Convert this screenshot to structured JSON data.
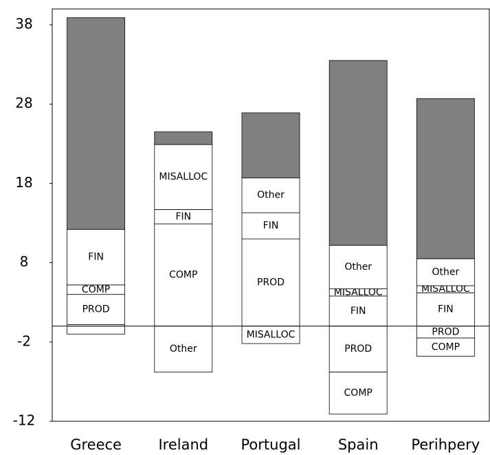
{
  "chart_data": {
    "type": "stacked-bar",
    "categories": [
      "Greece",
      "Ireland",
      "Portugal",
      "Spain",
      "Perihpery"
    ],
    "segment_colors": {
      "labeled": "#ffffff",
      "residual": "#808080"
    },
    "bars": [
      [
        {
          "label": null,
          "value": -1.0
        },
        {
          "label": null,
          "value": 0.2
        },
        {
          "label": "PROD",
          "value": 3.8
        },
        {
          "label": "COMP",
          "value": 1.2
        },
        {
          "label": "FIN",
          "value": 7.0
        },
        {
          "label": null,
          "value": 26.7,
          "residual": true
        }
      ],
      [
        {
          "label": "Other",
          "value": -5.8
        },
        {
          "label": "COMP",
          "value": 12.9
        },
        {
          "label": "FIN",
          "value": 1.8
        },
        {
          "label": "MISALLOC",
          "value": 8.2
        },
        {
          "label": null,
          "value": 1.6,
          "residual": true
        }
      ],
      [
        {
          "label": "MISALLOC",
          "value": -2.2
        },
        {
          "label": "PROD",
          "value": 11.0
        },
        {
          "label": "FIN",
          "value": 3.3
        },
        {
          "label": "Other",
          "value": 4.4
        },
        {
          "label": null,
          "value": 8.2,
          "residual": true
        }
      ],
      [
        {
          "label": "PROD",
          "value": -5.8
        },
        {
          "label": "COMP",
          "value": -5.3
        },
        {
          "label": "FIN",
          "value": 3.8
        },
        {
          "label": "MISALLOC",
          "value": 0.9
        },
        {
          "label": "Other",
          "value": 5.5
        },
        {
          "label": null,
          "value": 23.3,
          "residual": true
        }
      ],
      [
        {
          "label": "PROD",
          "value": -1.5
        },
        {
          "label": "COMP",
          "value": -2.3
        },
        {
          "label": "FIN",
          "value": 4.2
        },
        {
          "label": "MISALLOC",
          "value": 0.9
        },
        {
          "label": "Other",
          "value": 3.4
        },
        {
          "label": null,
          "value": 20.2,
          "residual": true
        }
      ]
    ],
    "ylim": [
      -12,
      40
    ],
    "yticks": [
      -12,
      -2,
      8,
      18,
      28,
      38
    ]
  }
}
